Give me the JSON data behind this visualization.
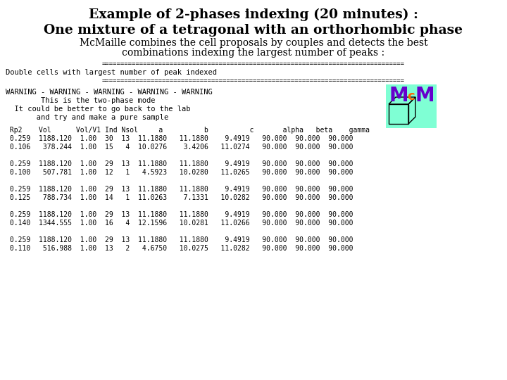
{
  "title_line1": "Example of 2-phases indexing (20 minutes) :",
  "title_line2": "One mixture of a tetragonal with an orthorhombic phase",
  "subtitle1": "McMaille combines the cell proposals by couples and detects the best",
  "subtitle2": "combinations indexing the largest number of peaks :",
  "separator": "================================================================================",
  "header_mono": "Double cells with largest number of peak indexed",
  "warning_text": "WARNING - WARNING - WARNING - WARNING - WARNING\n        This is the two-phase mode\n  It could be better to go back to the lab\n       and try and make a pure sample",
  "col_header": " Rp2    Vol      Vol/V1 Ind Nsol     a          b          c       alpha   beta    gamma",
  "bg_color": "#ffffff",
  "title_color": "#000000",
  "mono_color": "#000000",
  "logo_bg": "#7fffd4",
  "logo_M_color": "#6600cc",
  "logo_c_color": "#ff6600",
  "logo_m_color": "#6600cc",
  "row_data": [
    " 0.259  1188.120  1.00  30  13  11.1880   11.1880    9.4919   90.000  90.000  90.000",
    " 0.106   378.244  1.00  15   4  10.0276    3.4206   11.0274   90.000  90.000  90.000",
    "",
    " 0.259  1188.120  1.00  29  13  11.1880   11.1880    9.4919   90.000  90.000  90.000",
    " 0.100   507.781  1.00  12   1   4.5923   10.0280   11.0265   90.000  90.000  90.000",
    "",
    " 0.259  1188.120  1.00  29  13  11.1880   11.1880    9.4919   90.000  90.000  90.000",
    " 0.125   788.734  1.00  14   1  11.0263    7.1331   10.0282   90.000  90.000  90.000",
    "",
    " 0.259  1188.120  1.00  29  13  11.1880   11.1880    9.4919   90.000  90.000  90.000",
    " 0.140  1344.555  1.00  16   4  12.1596   10.0281   11.0266   90.000  90.000  90.000",
    "",
    " 0.259  1188.120  1.00  29  13  11.1880   11.1880    9.4919   90.000  90.000  90.000",
    " 0.110   516.988  1.00  13   2   4.6750   10.0275   11.0282   90.000  90.000  90.000"
  ]
}
